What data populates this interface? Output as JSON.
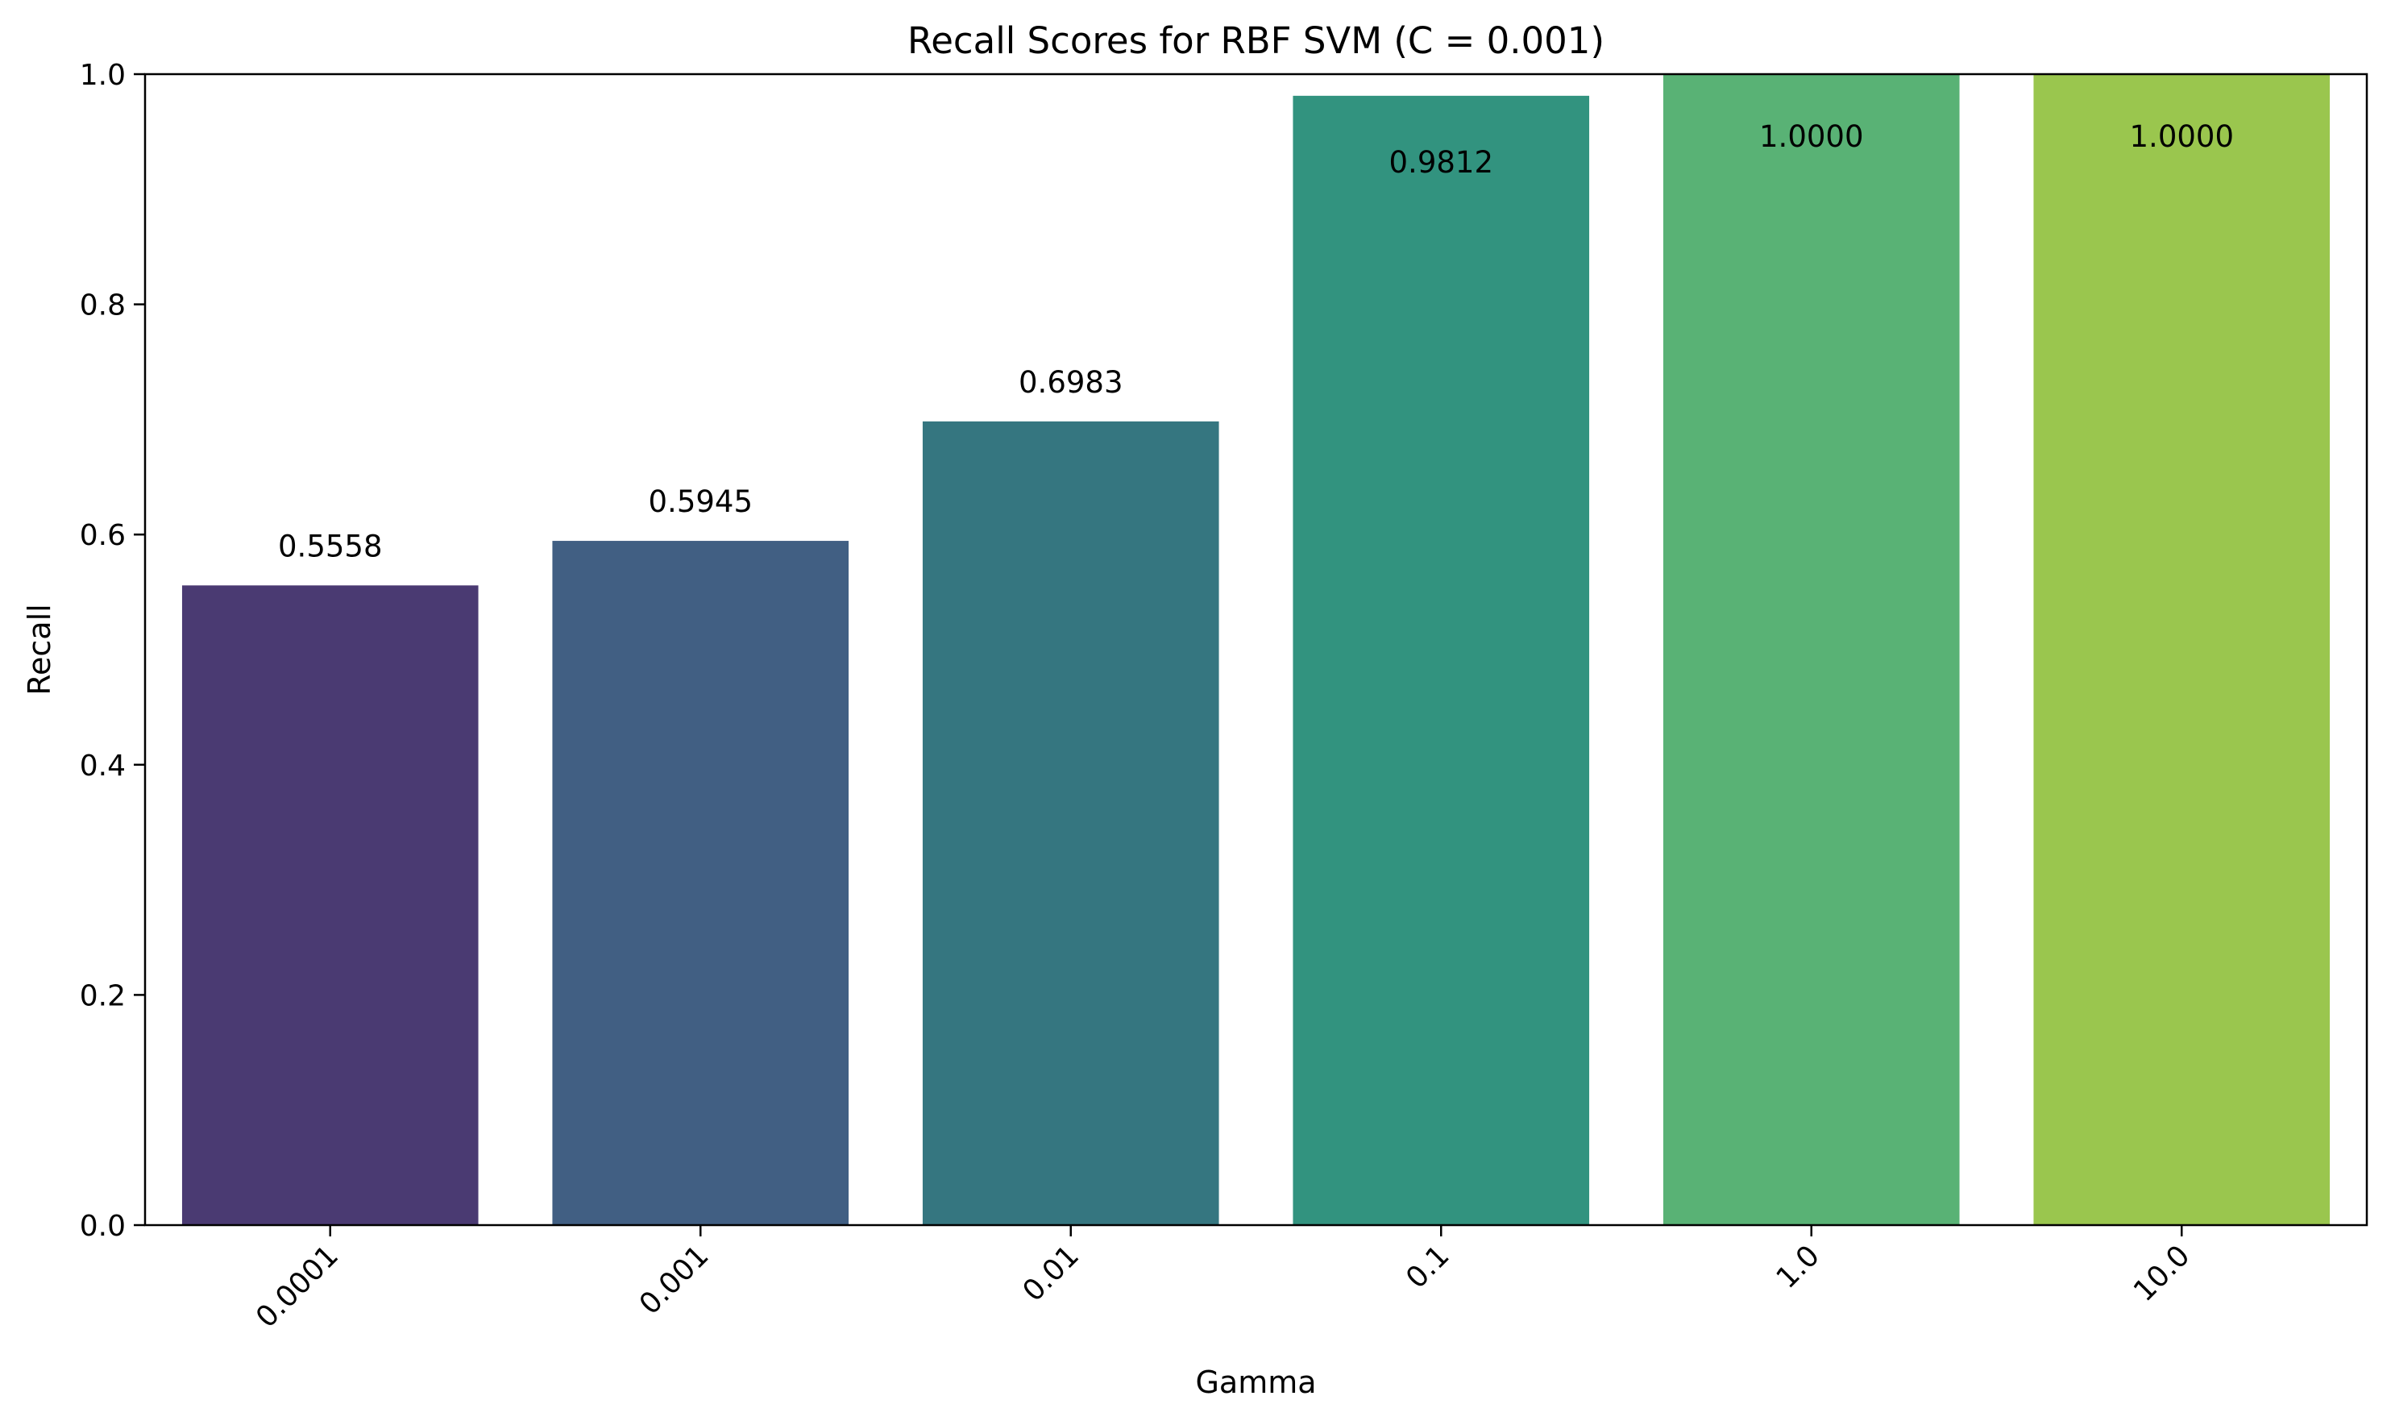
{
  "chart_data": {
    "type": "bar",
    "title": "Recall Scores for RBF SVM (C = 0.001)",
    "xlabel": "Gamma",
    "ylabel": "Recall",
    "categories": [
      "0.0001",
      "0.001",
      "0.01",
      "0.1",
      "1.0",
      "10.0"
    ],
    "values": [
      0.5558,
      0.5945,
      0.6983,
      0.9812,
      1.0,
      1.0
    ],
    "value_labels": [
      "0.5558",
      "0.5945",
      "0.6983",
      "0.9812",
      "1.0000",
      "1.0000"
    ],
    "ylim": [
      0,
      1
    ],
    "yticks": [
      0.0,
      0.2,
      0.4,
      0.6,
      0.8,
      1.0
    ],
    "ytick_labels": [
      "0.0",
      "0.2",
      "0.4",
      "0.6",
      "0.8",
      "1.0"
    ],
    "grid": false,
    "colors": [
      "#4a3a72",
      "#415f83",
      "#357680",
      "#32937f",
      "#59b275",
      "#9ac64e"
    ]
  }
}
